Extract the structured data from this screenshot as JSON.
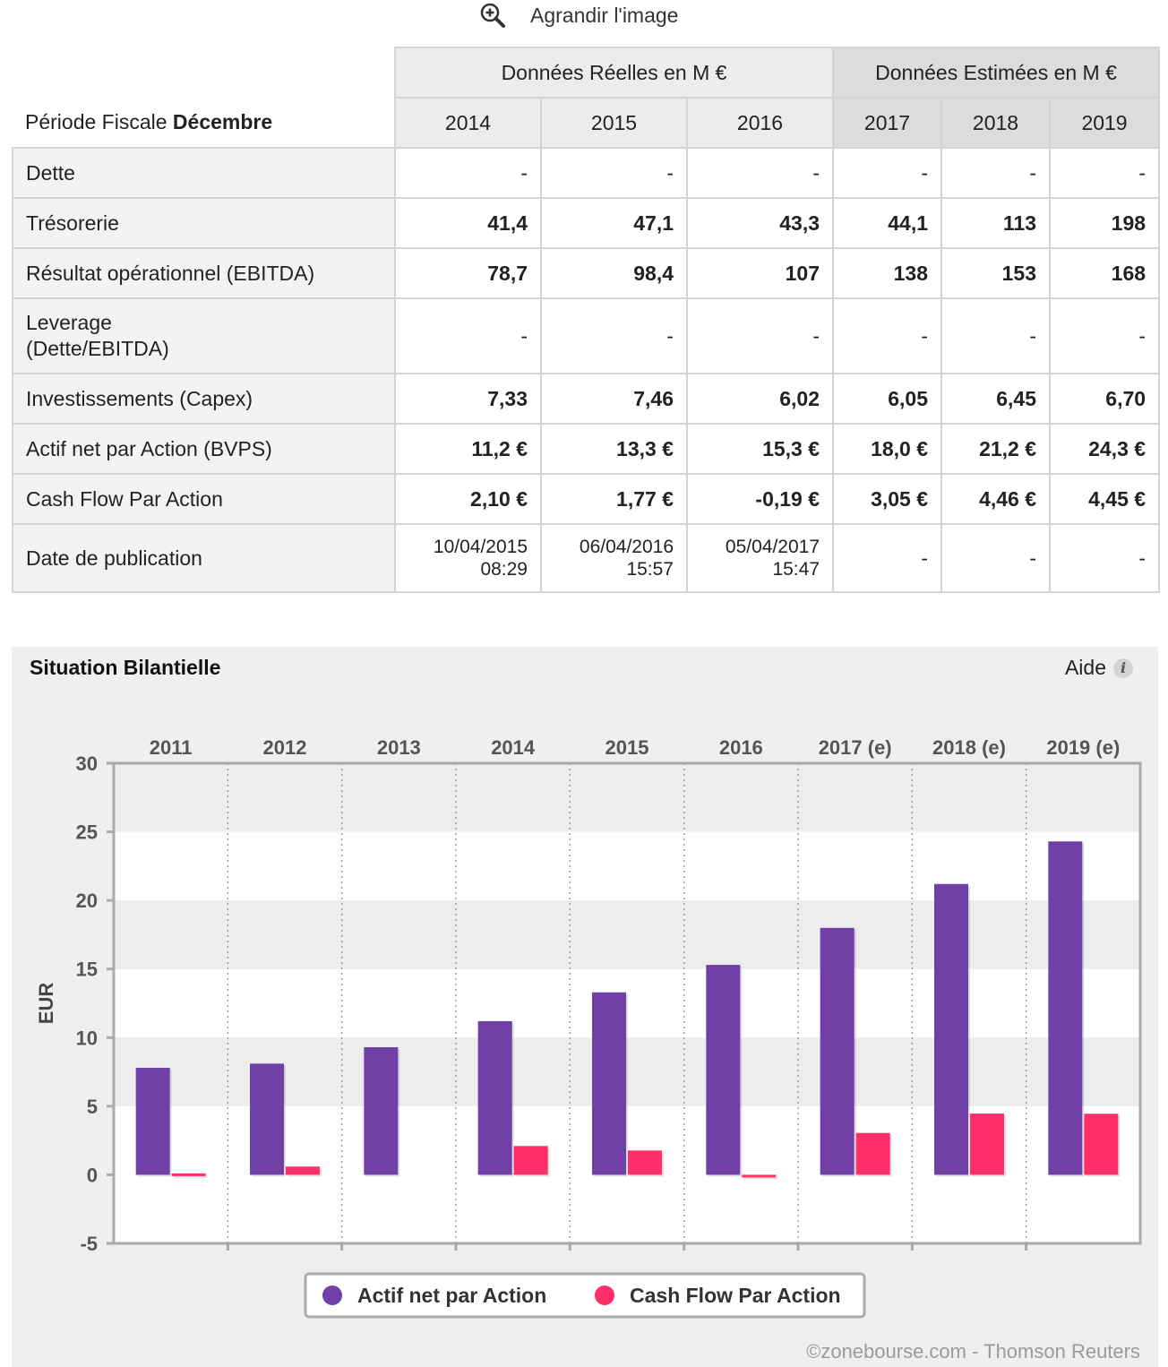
{
  "toolbar": {
    "zoom_label": "Agrandir l'image"
  },
  "table": {
    "group_real": "Données Réelles en M €",
    "group_est": "Données Estimées en M €",
    "period_prefix": "Période Fiscale ",
    "period_month": "Décembre",
    "years": [
      "2014",
      "2015",
      "2016",
      "2017",
      "2018",
      "2019"
    ],
    "rows": [
      {
        "label": "Dette",
        "values": [
          "-",
          "-",
          "-",
          "-",
          "-",
          "-"
        ]
      },
      {
        "label": "Trésorerie",
        "values": [
          "41,4",
          "47,1",
          "43,3",
          "44,1",
          "113",
          "198"
        ]
      },
      {
        "label": "Résultat opérationnel (EBITDA)",
        "values": [
          "78,7",
          "98,4",
          "107",
          "138",
          "153",
          "168"
        ]
      },
      {
        "label_lines": [
          "Leverage",
          "(Dette/EBITDA)"
        ],
        "values": [
          "-",
          "-",
          "-",
          "-",
          "-",
          "-"
        ]
      },
      {
        "label": "Investissements (Capex)",
        "values": [
          "7,33",
          "7,46",
          "6,02",
          "6,05",
          "6,45",
          "6,70"
        ]
      },
      {
        "label": "Actif net par Action (BVPS)",
        "values": [
          "11,2 €",
          "13,3 €",
          "15,3 €",
          "18,0 €",
          "21,2 €",
          "24,3 €"
        ]
      },
      {
        "label": "Cash Flow Par Action",
        "values": [
          "2,10 €",
          "1,77 €",
          "-0,19 €",
          "3,05 €",
          "4,46 €",
          "4,45 €"
        ]
      },
      {
        "label": "Date de publication",
        "dates": [
          [
            "10/04/2015",
            "08:29"
          ],
          [
            "06/04/2016",
            "15:57"
          ],
          [
            "05/04/2017",
            "15:47"
          ]
        ],
        "values": [
          "-",
          "-",
          "-"
        ]
      }
    ]
  },
  "panel": {
    "title": "Situation Bilantielle",
    "help_label": "Aide",
    "credit": "©zonebourse.com - Thomson Reuters"
  },
  "chart_data": {
    "type": "bar",
    "categories": [
      "2011",
      "2012",
      "2013",
      "2014",
      "2015",
      "2016",
      "2017 (e)",
      "2018 (e)",
      "2019 (e)"
    ],
    "series": [
      {
        "name": "Actif net par Action",
        "color": "#7040a6",
        "values": [
          7.8,
          8.1,
          9.3,
          11.2,
          13.3,
          15.3,
          18.0,
          21.2,
          24.3
        ]
      },
      {
        "name": "Cash Flow Par Action",
        "color": "#ff2f6a",
        "values": [
          0.1,
          0.6,
          null,
          2.1,
          1.77,
          -0.19,
          3.05,
          4.46,
          4.45
        ]
      }
    ],
    "ylabel": "EUR",
    "ylim": [
      -5,
      30
    ],
    "yticks": [
      -5,
      0,
      5,
      10,
      15,
      20,
      25,
      30
    ],
    "legend": "bottom-center",
    "grid": true
  }
}
